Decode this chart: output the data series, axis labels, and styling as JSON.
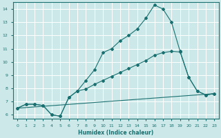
{
  "xlabel": "Humidex (Indice chaleur)",
  "bg_color": "#cce8e8",
  "grid_color": "#ffffff",
  "line_color": "#1a7070",
  "xlim": [
    -0.5,
    23.5
  ],
  "ylim": [
    5.7,
    14.5
  ],
  "xticks": [
    0,
    1,
    2,
    3,
    4,
    5,
    6,
    7,
    8,
    9,
    10,
    11,
    12,
    13,
    14,
    15,
    16,
    17,
    18,
    19,
    20,
    21,
    22,
    23
  ],
  "yticks": [
    6,
    7,
    8,
    9,
    10,
    11,
    12,
    13,
    14
  ],
  "line1_x": [
    0,
    1,
    2,
    3,
    4,
    5,
    6,
    7,
    8,
    9,
    10,
    11,
    12,
    13,
    14,
    15,
    16,
    17,
    18,
    19,
    20,
    21,
    22,
    23
  ],
  "line1_y": [
    6.5,
    6.8,
    6.8,
    6.7,
    6.0,
    5.9,
    7.3,
    7.8,
    8.6,
    9.4,
    10.7,
    11.0,
    11.6,
    12.0,
    12.5,
    13.3,
    14.3,
    14.0,
    13.0,
    10.8,
    8.85,
    7.8,
    7.5,
    7.6
  ],
  "line2_x": [
    0,
    1,
    2,
    3,
    4,
    5,
    6,
    7,
    8,
    9,
    10,
    11,
    12,
    13,
    14,
    15,
    16,
    17,
    18,
    19,
    20,
    21,
    22,
    23
  ],
  "line2_y": [
    6.5,
    6.8,
    6.8,
    6.7,
    6.0,
    5.9,
    7.3,
    7.8,
    7.95,
    8.3,
    8.6,
    8.9,
    9.2,
    9.5,
    9.8,
    10.1,
    10.5,
    10.7,
    10.8,
    10.75,
    8.85,
    7.8,
    7.5,
    7.6
  ],
  "line3_x": [
    0,
    23
  ],
  "line3_y": [
    6.5,
    7.6
  ]
}
